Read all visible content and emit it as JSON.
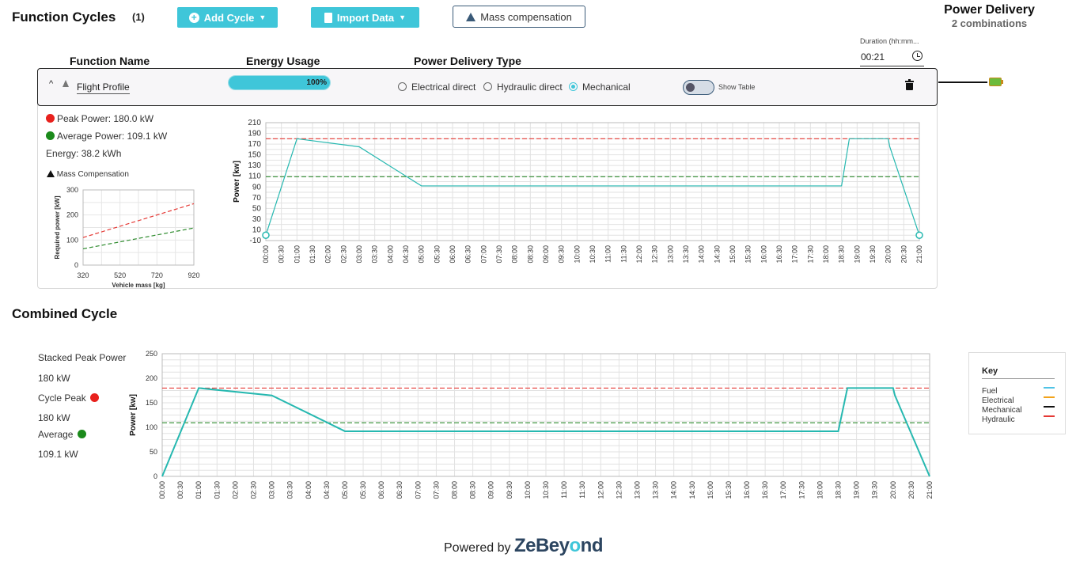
{
  "header": {
    "title": "Function Cycles",
    "count": "(1)",
    "add_cycle": "Add Cycle",
    "import_data": "Import Data",
    "mass_compensation": "Mass compensation",
    "power_delivery_title": "Power Delivery",
    "power_delivery_sub": "2 combinations"
  },
  "duration": {
    "label": "Duration (hh:mm...",
    "value": "00:21"
  },
  "columns": {
    "function_name": "Function Name",
    "energy_usage": "Energy Usage",
    "power_delivery_type": "Power Delivery Type"
  },
  "cycle_row": {
    "name": "Flight Profile",
    "energy_percent": "100%",
    "energy_fraction": 1.0,
    "options": [
      "Electrical direct",
      "Hydraulic direct",
      "Mechanical"
    ],
    "selected": "Mechanical",
    "show_table": "Show Table"
  },
  "stats": {
    "peak_power": "Peak Power: 180.0 kW",
    "average_power": "Average Power: 109.1 kW",
    "energy": "Energy: 38.2 kWh",
    "mass_comp": "Mass Compensation"
  },
  "combined": {
    "title": "Combined Cycle",
    "stacked_label": "Stacked Peak Power",
    "stacked_value": "180 kW",
    "cycle_peak_label": "Cycle Peak",
    "cycle_peak_value": "180 kW",
    "average_label": "Average",
    "average_value": "109.1 kW"
  },
  "legend": {
    "title": "Key",
    "items": [
      {
        "label": "Fuel",
        "color": "#4fc3e6"
      },
      {
        "label": "Electrical",
        "color": "#f2a31b"
      },
      {
        "label": "Mechanical",
        "color": "#111111"
      },
      {
        "label": "Hydraulic",
        "color": "#e53935"
      }
    ]
  },
  "footer": {
    "powered_by": "Powered by",
    "brand_a": "ZeBey",
    "brand_b": "o",
    "brand_c": "nd"
  },
  "colors": {
    "accent": "#3fc6d9",
    "line": "#26b8b0",
    "peak": "#e53935",
    "average": "#2e8b2e"
  },
  "chart_data": [
    {
      "id": "mass-compensation",
      "type": "line",
      "xlabel": "Vehicle mass [kg]",
      "ylabel": "Required power [kW]",
      "xlim": [
        320,
        920
      ],
      "ylim": [
        0,
        300
      ],
      "xticks": [
        320,
        520,
        720,
        920
      ],
      "yticks": [
        0,
        100,
        200,
        300
      ],
      "grid": true,
      "series": [
        {
          "style": "peak",
          "x": [
            320,
            920
          ],
          "y": [
            110,
            245
          ]
        },
        {
          "style": "average",
          "x": [
            320,
            920
          ],
          "y": [
            65,
            148
          ]
        }
      ]
    },
    {
      "id": "function-cycle",
      "type": "line",
      "ylabel": "Power [kw]",
      "ylim": [
        -10,
        210
      ],
      "yticks": [
        -10,
        10,
        30,
        50,
        70,
        90,
        110,
        130,
        150,
        170,
        190,
        210
      ],
      "xticks": [
        "00:00",
        "00:30",
        "01:00",
        "01:30",
        "02:00",
        "02:30",
        "03:00",
        "03:30",
        "04:00",
        "04:30",
        "05:00",
        "05:30",
        "06:00",
        "06:30",
        "07:00",
        "07:30",
        "08:00",
        "08:30",
        "09:00",
        "09:30",
        "10:00",
        "10:30",
        "11:00",
        "11:30",
        "12:00",
        "12:30",
        "13:00",
        "13:30",
        "14:00",
        "14:30",
        "15:00",
        "15:30",
        "16:00",
        "16:30",
        "17:00",
        "17:30",
        "18:00",
        "18:30",
        "19:00",
        "19:30",
        "20:00",
        "20:30",
        "21:00"
      ],
      "x_minutes": [
        0,
        1,
        3,
        5,
        18.5,
        18.75,
        20,
        20.05,
        21
      ],
      "y": [
        0,
        180,
        165,
        92,
        92,
        180,
        180,
        165,
        0
      ],
      "peak": 180,
      "average": 109.1,
      "grid": true
    },
    {
      "id": "combined-cycle",
      "type": "line",
      "ylabel": "Power [kw]",
      "ylim": [
        0,
        250
      ],
      "yticks": [
        0,
        50,
        100,
        150,
        200,
        250
      ],
      "xticks": [
        "00:00",
        "00:30",
        "01:00",
        "01:30",
        "02:00",
        "02:30",
        "03:00",
        "03:30",
        "04:00",
        "04:30",
        "05:00",
        "05:30",
        "06:00",
        "06:30",
        "07:00",
        "07:30",
        "08:00",
        "08:30",
        "09:00",
        "09:30",
        "10:00",
        "10:30",
        "11:00",
        "11:30",
        "12:00",
        "12:30",
        "13:00",
        "13:30",
        "14:00",
        "14:30",
        "15:00",
        "15:30",
        "16:00",
        "16:30",
        "17:00",
        "17:30",
        "18:00",
        "18:30",
        "19:00",
        "19:30",
        "20:00",
        "20:30",
        "21:00"
      ],
      "x_minutes": [
        0,
        1,
        3,
        5,
        18.5,
        18.75,
        20,
        20.05,
        21
      ],
      "y": [
        0,
        180,
        165,
        92,
        92,
        180,
        180,
        165,
        0
      ],
      "peak": 180,
      "average": 109.1,
      "grid": true
    }
  ]
}
